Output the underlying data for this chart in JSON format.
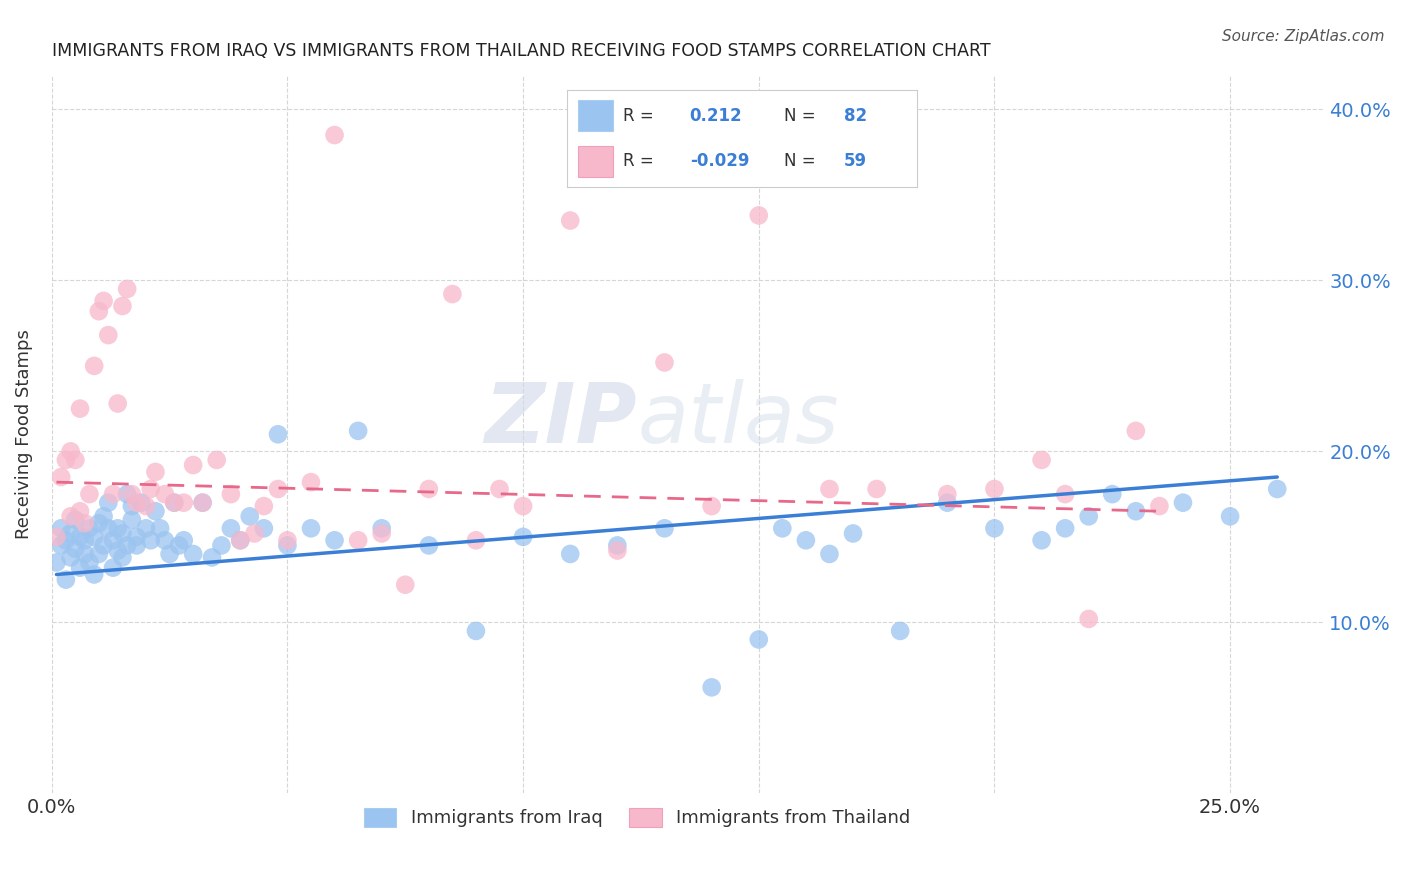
{
  "title": "IMMIGRANTS FROM IRAQ VS IMMIGRANTS FROM THAILAND RECEIVING FOOD STAMPS CORRELATION CHART",
  "source": "Source: ZipAtlas.com",
  "ylabel": "Receiving Food Stamps",
  "xlim": [
    0.0,
    0.27
  ],
  "ylim": [
    0.0,
    0.42
  ],
  "yticks": [
    0.1,
    0.2,
    0.3,
    0.4
  ],
  "xticks": [
    0.0,
    0.05,
    0.1,
    0.15,
    0.2,
    0.25
  ],
  "legend_R_iraq": "0.212",
  "legend_N_iraq": "82",
  "legend_R_thai": "-0.029",
  "legend_N_thai": "59",
  "iraq_color": "#9bc4f0",
  "thai_color": "#f7b8cb",
  "iraq_line_color": "#3a7fd5",
  "thai_line_color": "#e8688a",
  "watermark_zip": "ZIP",
  "watermark_atlas": "atlas",
  "background_color": "#ffffff",
  "grid_color": "#cccccc",
  "iraq_x": [
    0.001,
    0.002,
    0.002,
    0.003,
    0.003,
    0.004,
    0.004,
    0.005,
    0.005,
    0.006,
    0.006,
    0.007,
    0.007,
    0.008,
    0.008,
    0.009,
    0.009,
    0.01,
    0.01,
    0.011,
    0.011,
    0.012,
    0.012,
    0.013,
    0.013,
    0.014,
    0.014,
    0.015,
    0.015,
    0.016,
    0.016,
    0.017,
    0.017,
    0.018,
    0.018,
    0.019,
    0.02,
    0.021,
    0.022,
    0.023,
    0.024,
    0.025,
    0.026,
    0.027,
    0.028,
    0.03,
    0.032,
    0.034,
    0.036,
    0.038,
    0.04,
    0.042,
    0.045,
    0.048,
    0.05,
    0.055,
    0.06,
    0.065,
    0.07,
    0.08,
    0.09,
    0.1,
    0.11,
    0.12,
    0.13,
    0.14,
    0.15,
    0.155,
    0.16,
    0.165,
    0.17,
    0.18,
    0.19,
    0.2,
    0.21,
    0.215,
    0.22,
    0.225,
    0.23,
    0.24,
    0.25,
    0.26
  ],
  "iraq_y": [
    0.135,
    0.145,
    0.155,
    0.125,
    0.148,
    0.138,
    0.152,
    0.143,
    0.16,
    0.132,
    0.15,
    0.148,
    0.14,
    0.135,
    0.155,
    0.128,
    0.15,
    0.14,
    0.158,
    0.145,
    0.162,
    0.155,
    0.17,
    0.132,
    0.148,
    0.155,
    0.142,
    0.138,
    0.152,
    0.175,
    0.145,
    0.16,
    0.168,
    0.15,
    0.145,
    0.17,
    0.155,
    0.148,
    0.165,
    0.155,
    0.148,
    0.14,
    0.17,
    0.145,
    0.148,
    0.14,
    0.17,
    0.138,
    0.145,
    0.155,
    0.148,
    0.162,
    0.155,
    0.21,
    0.145,
    0.155,
    0.148,
    0.212,
    0.155,
    0.145,
    0.095,
    0.15,
    0.14,
    0.145,
    0.155,
    0.062,
    0.09,
    0.155,
    0.148,
    0.14,
    0.152,
    0.095,
    0.17,
    0.155,
    0.148,
    0.155,
    0.162,
    0.175,
    0.165,
    0.17,
    0.162,
    0.178
  ],
  "thai_x": [
    0.001,
    0.002,
    0.003,
    0.004,
    0.004,
    0.005,
    0.006,
    0.006,
    0.007,
    0.008,
    0.009,
    0.01,
    0.011,
    0.012,
    0.013,
    0.014,
    0.015,
    0.016,
    0.017,
    0.018,
    0.02,
    0.021,
    0.022,
    0.024,
    0.026,
    0.028,
    0.03,
    0.032,
    0.035,
    0.038,
    0.04,
    0.043,
    0.045,
    0.048,
    0.05,
    0.055,
    0.06,
    0.065,
    0.07,
    0.075,
    0.08,
    0.085,
    0.09,
    0.095,
    0.1,
    0.11,
    0.12,
    0.13,
    0.14,
    0.15,
    0.165,
    0.175,
    0.19,
    0.2,
    0.21,
    0.215,
    0.22,
    0.23,
    0.235
  ],
  "thai_y": [
    0.15,
    0.185,
    0.195,
    0.162,
    0.2,
    0.195,
    0.165,
    0.225,
    0.158,
    0.175,
    0.25,
    0.282,
    0.288,
    0.268,
    0.175,
    0.228,
    0.285,
    0.295,
    0.175,
    0.17,
    0.168,
    0.178,
    0.188,
    0.175,
    0.17,
    0.17,
    0.192,
    0.17,
    0.195,
    0.175,
    0.148,
    0.152,
    0.168,
    0.178,
    0.148,
    0.182,
    0.385,
    0.148,
    0.152,
    0.122,
    0.178,
    0.292,
    0.148,
    0.178,
    0.168,
    0.335,
    0.142,
    0.252,
    0.168,
    0.338,
    0.178,
    0.178,
    0.175,
    0.178,
    0.195,
    0.175,
    0.102,
    0.212,
    0.168
  ],
  "iraq_line_x": [
    0.001,
    0.26
  ],
  "iraq_line_y": [
    0.128,
    0.185
  ],
  "thai_line_x": [
    0.001,
    0.235
  ],
  "thai_line_y": [
    0.182,
    0.165
  ]
}
